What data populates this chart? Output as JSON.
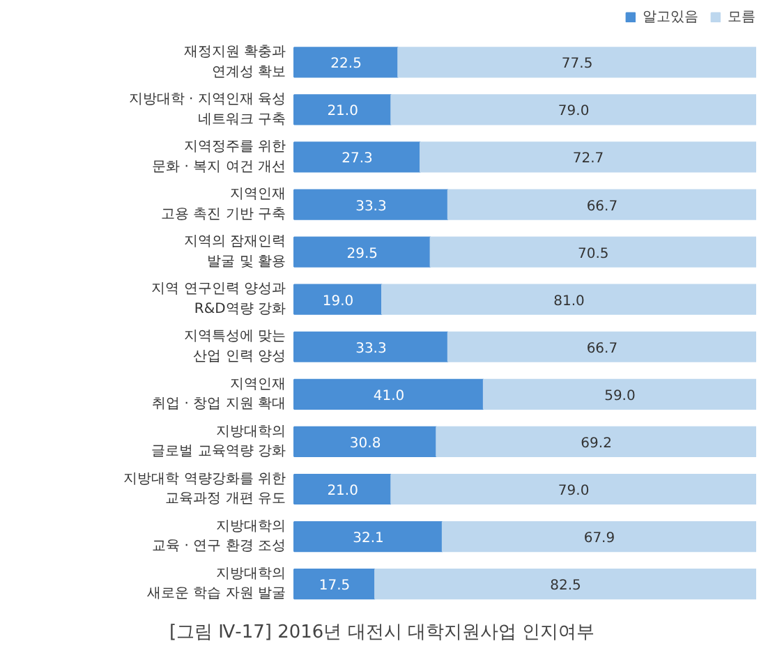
{
  "chart_data": {
    "type": "bar",
    "orientation": "horizontal",
    "stacked": true,
    "legend": "top right",
    "grid": false,
    "xlim": [
      0,
      100
    ],
    "tick_labels": "y",
    "title": "[그림 Ⅳ-17] 2016년 대전시 대학지원사업 인지여부",
    "categories": [
      "재정지원 확충과\n연계성 확보",
      "지방대학 · 지역인재 육성\n네트워크 구축",
      "지역정주를 위한\n문화 · 복지 여건 개선",
      "지역인재\n고용 촉진 기반 구축",
      "지역의 잠재인력\n발굴 및 활용",
      "지역 연구인력 양성과\nR&D역량 강화",
      "지역특성에 맞는\n산업 인력 양성",
      "지역인재\n취업 · 창업 지원 확대",
      "지방대학의\n글로벌 교육역량 강화",
      "지방대학 역량강화를 위한\n교육과정 개편 유도",
      "지방대학의\n교육 · 연구 환경 조성",
      "지방대학의\n새로운 학습 자원 발굴"
    ],
    "series": [
      {
        "name": "알고있음",
        "color": "#4a8fd6",
        "values": [
          22.5,
          21.0,
          27.3,
          33.3,
          29.5,
          19.0,
          33.3,
          41.0,
          30.8,
          21.0,
          32.1,
          17.5
        ],
        "value_labels": [
          "22.5",
          "21.0",
          "27.3",
          "33.3",
          "29.5",
          "19.0",
          "33.3",
          "41.0",
          "30.8",
          "21.0",
          "32.1",
          "17.5"
        ]
      },
      {
        "name": "모름",
        "color": "#bdd7ee",
        "values": [
          77.5,
          79.0,
          72.7,
          66.7,
          70.5,
          81.0,
          66.7,
          59.0,
          69.2,
          79.0,
          67.9,
          82.5
        ],
        "value_labels": [
          "77.5",
          "79.0",
          "72.7",
          "66.7",
          "70.5",
          "81.0",
          "66.7",
          "59.0",
          "69.2",
          "79.0",
          "67.9",
          "82.5"
        ]
      }
    ]
  }
}
